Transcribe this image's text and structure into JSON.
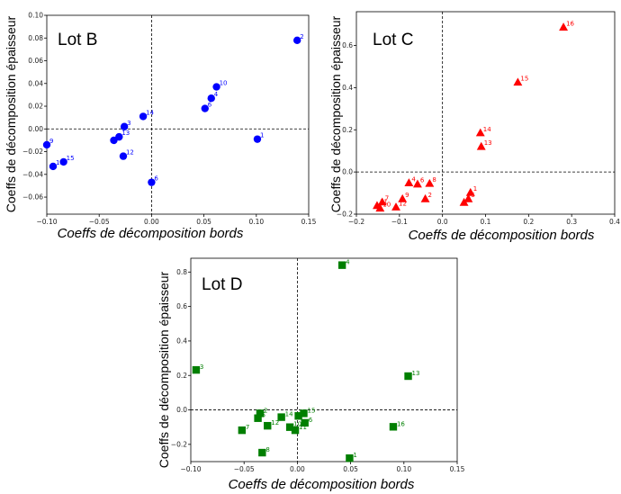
{
  "chart_data": [
    {
      "type": "scatter",
      "panel_label": "Lot B",
      "xlabel": "Coeffs de décomposition bords",
      "ylabel": "Coeffs de décomposition épaisseur",
      "xlim": [
        -0.1,
        0.15
      ],
      "ylim": [
        -0.075,
        0.1
      ],
      "xticks": [
        -0.1,
        -0.05,
        0.0,
        0.05,
        0.1,
        0.15
      ],
      "yticks": [
        -0.06,
        -0.04,
        -0.02,
        0.0,
        0.02,
        0.04,
        0.06,
        0.08,
        0.1
      ],
      "xtick_labels": [
        "−0.10",
        "−0.05",
        "0.00",
        "0.05",
        "0.10",
        "0.15"
      ],
      "ytick_labels": [
        "−0.06",
        "−0.04",
        "−0.02",
        "0.00",
        "0.02",
        "0.04",
        "0.06",
        "0.08",
        "0.10"
      ],
      "marker": "circle",
      "color": "#0000ff",
      "reference_lines": {
        "x": 0,
        "y": 0,
        "style": "dashed"
      },
      "points": [
        {
          "label": "2",
          "x": 0.139,
          "y": 0.078
        },
        {
          "label": "10",
          "x": 0.062,
          "y": 0.037
        },
        {
          "label": "4",
          "x": 0.057,
          "y": 0.027
        },
        {
          "label": "6",
          "x": 0.051,
          "y": 0.018
        },
        {
          "label": "14",
          "x": -0.008,
          "y": 0.011
        },
        {
          "label": "3",
          "x": -0.026,
          "y": 0.002
        },
        {
          "label": "1",
          "x": 0.101,
          "y": -0.009
        },
        {
          "label": "13",
          "x": -0.031,
          "y": -0.007
        },
        {
          "label": "5",
          "x": -0.036,
          "y": -0.01
        },
        {
          "label": "12",
          "x": -0.027,
          "y": -0.024
        },
        {
          "label": "9",
          "x": -0.1,
          "y": -0.014
        },
        {
          "label": "15",
          "x": -0.084,
          "y": -0.029
        },
        {
          "label": "11",
          "x": -0.094,
          "y": -0.033
        },
        {
          "label": "6",
          "x": 0.0,
          "y": -0.047
        }
      ]
    },
    {
      "type": "scatter",
      "panel_label": "Lot C",
      "xlabel": "Coeffs de décomposition bords",
      "ylabel": "Coeffs de décomposition épaisseur",
      "xlim": [
        -0.2,
        0.4
      ],
      "ylim": [
        -0.2,
        0.76
      ],
      "xticks": [
        -0.2,
        -0.1,
        0.0,
        0.1,
        0.2,
        0.3,
        0.4
      ],
      "yticks": [
        -0.2,
        0.0,
        0.2,
        0.4,
        0.6
      ],
      "xtick_labels": [
        "−0.2",
        "−0.1",
        "0.0",
        "0.1",
        "0.2",
        "0.3",
        "0.4"
      ],
      "ytick_labels": [
        "−0.2",
        "0.0",
        "0.2",
        "0.4",
        "0.6"
      ],
      "marker": "triangle",
      "color": "#ff0000",
      "reference_lines": {
        "x": 0,
        "y": 0,
        "style": "dashed"
      },
      "points": [
        {
          "label": "16",
          "x": 0.281,
          "y": 0.686
        },
        {
          "label": "15",
          "x": 0.175,
          "y": 0.425
        },
        {
          "label": "14",
          "x": 0.088,
          "y": 0.185
        },
        {
          "label": "13",
          "x": 0.09,
          "y": 0.12
        },
        {
          "label": "1",
          "x": 0.065,
          "y": -0.098
        },
        {
          "label": "5",
          "x": 0.06,
          "y": -0.128
        },
        {
          "label": "3",
          "x": 0.05,
          "y": -0.145
        },
        {
          "label": "2",
          "x": -0.04,
          "y": -0.128
        },
        {
          "label": "8",
          "x": -0.03,
          "y": -0.055
        },
        {
          "label": "6",
          "x": -0.058,
          "y": -0.058
        },
        {
          "label": "4",
          "x": -0.078,
          "y": -0.052
        },
        {
          "label": "9",
          "x": -0.093,
          "y": -0.128
        },
        {
          "label": "12",
          "x": -0.108,
          "y": -0.167
        },
        {
          "label": "7",
          "x": -0.14,
          "y": -0.143
        },
        {
          "label": "11",
          "x": -0.152,
          "y": -0.16
        },
        {
          "label": "10",
          "x": -0.145,
          "y": -0.172
        }
      ]
    },
    {
      "type": "scatter",
      "panel_label": "Lot D",
      "xlabel": "Coeffs de décomposition bords",
      "ylabel": "Coeffs de décomposition épaisseur",
      "xlim": [
        -0.1,
        0.15
      ],
      "ylim": [
        -0.3,
        0.88
      ],
      "xticks": [
        -0.1,
        -0.05,
        0.0,
        0.05,
        0.1,
        0.15
      ],
      "yticks": [
        -0.2,
        0.0,
        0.2,
        0.4,
        0.6,
        0.8
      ],
      "xtick_labels": [
        "−0.10",
        "−0.05",
        "0.00",
        "0.05",
        "0.10",
        "0.15"
      ],
      "ytick_labels": [
        "−0.2",
        "0.0",
        "0.2",
        "0.4",
        "0.6",
        "0.8"
      ],
      "marker": "square",
      "color": "#007f00",
      "reference_lines": {
        "x": 0,
        "y": 0,
        "style": "dashed"
      },
      "points": [
        {
          "label": "4",
          "x": 0.042,
          "y": 0.84
        },
        {
          "label": "3",
          "x": -0.095,
          "y": 0.232
        },
        {
          "label": "13",
          "x": 0.104,
          "y": 0.196
        },
        {
          "label": "16",
          "x": 0.09,
          "y": -0.098
        },
        {
          "label": "1",
          "x": 0.049,
          "y": -0.28
        },
        {
          "label": "2",
          "x": -0.035,
          "y": -0.02
        },
        {
          "label": "5",
          "x": -0.037,
          "y": -0.048
        },
        {
          "label": "12",
          "x": -0.028,
          "y": -0.092
        },
        {
          "label": "7",
          "x": -0.052,
          "y": -0.118
        },
        {
          "label": "8",
          "x": -0.033,
          "y": -0.248
        },
        {
          "label": "14",
          "x": -0.015,
          "y": -0.042
        },
        {
          "label": "15",
          "x": 0.006,
          "y": -0.02
        },
        {
          "label": "9",
          "x": 0.001,
          "y": -0.035
        },
        {
          "label": "6",
          "x": 0.007,
          "y": -0.075
        },
        {
          "label": "10",
          "x": -0.007,
          "y": -0.1
        },
        {
          "label": "11",
          "x": -0.002,
          "y": -0.118
        }
      ]
    }
  ]
}
